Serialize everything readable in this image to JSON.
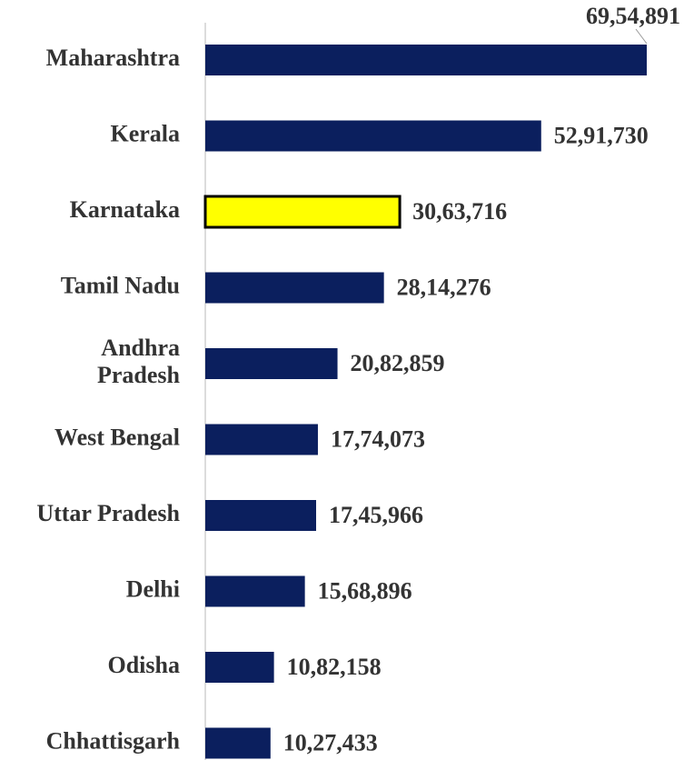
{
  "chart_data": {
    "type": "bar",
    "orientation": "horizontal",
    "categories": [
      "Maharashtra",
      "Kerala",
      "Karnataka",
      "Tamil Nadu",
      "Andhra Pradesh",
      "West Bengal",
      "Uttar Pradesh",
      "Delhi",
      "Odisha",
      "Chhattisgarh"
    ],
    "values": [
      6954891,
      5291730,
      3063716,
      2814276,
      2082859,
      1774073,
      1745966,
      1568896,
      1082158,
      1027433
    ],
    "value_labels": [
      "69,54,891",
      "52,91,730",
      "30,63,716",
      "28,14,276",
      "20,82,859",
      "17,74,073",
      "17,45,966",
      "15,68,896",
      "10,82,158",
      "10,27,433"
    ],
    "colors": [
      "#0b1f5e",
      "#0b1f5e",
      "#ffff00",
      "#0b1f5e",
      "#0b1f5e",
      "#0b1f5e",
      "#0b1f5e",
      "#0b1f5e",
      "#0b1f5e",
      "#0b1f5e"
    ]
  }
}
